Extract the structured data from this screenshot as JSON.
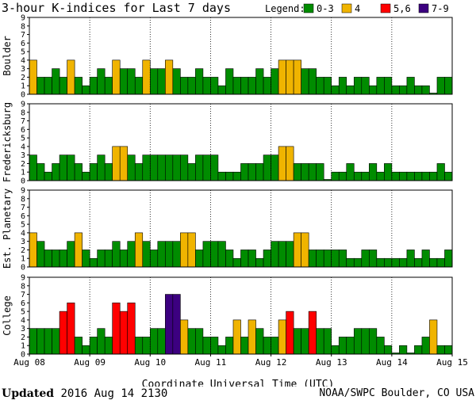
{
  "chart_data": {
    "type": "bar",
    "title": "3-hour K-indices for Last 7 days",
    "legend": {
      "label": "Legend:",
      "placement": "top-right",
      "items": [
        {
          "label": "0-3",
          "color": "#008c00"
        },
        {
          "label": "4",
          "color": "#f0b400"
        },
        {
          "label": "5,6",
          "color": "#ff0000"
        },
        {
          "label": "7-9",
          "color": "#3c0080"
        }
      ]
    },
    "ylim": [
      0,
      9
    ],
    "yticks": [
      0,
      1,
      2,
      3,
      4,
      5,
      6,
      7,
      8,
      9
    ],
    "xlabel": "Coordinate Universal Time (UTC)",
    "x_tick_labels": [
      "Aug 08",
      "Aug 09",
      "Aug 10",
      "Aug 11",
      "Aug 12",
      "Aug 13",
      "Aug 14",
      "Aug 15"
    ],
    "series": [
      {
        "name": "Boulder",
        "values": [
          4,
          2,
          2,
          3,
          2,
          4,
          2,
          1,
          2,
          3,
          2,
          4,
          3,
          3,
          2,
          4,
          3,
          3,
          4,
          3,
          2,
          2,
          3,
          2,
          2,
          1,
          3,
          2,
          2,
          2,
          3,
          2,
          3,
          4,
          4,
          4,
          3,
          3,
          2,
          2,
          1,
          2,
          1,
          2,
          2,
          1,
          2,
          2,
          1,
          1,
          2,
          1,
          1,
          0,
          2,
          2,
          1,
          0
        ]
      },
      {
        "name": "Fredericksburg",
        "values": [
          3,
          2,
          1,
          2,
          3,
          3,
          2,
          1,
          2,
          3,
          2,
          4,
          4,
          3,
          2,
          3,
          3,
          3,
          3,
          3,
          3,
          2,
          3,
          3,
          3,
          1,
          1,
          1,
          2,
          2,
          2,
          3,
          3,
          4,
          4,
          2,
          2,
          2,
          2,
          0,
          1,
          1,
          2,
          1,
          1,
          2,
          1,
          2,
          1,
          1,
          1,
          1,
          1,
          1,
          2,
          1,
          2,
          0
        ]
      },
      {
        "name": "Est. Planetary",
        "values": [
          4,
          3,
          2,
          2,
          2,
          3,
          4,
          2,
          1,
          2,
          2,
          3,
          2,
          3,
          4,
          3,
          2,
          3,
          3,
          3,
          4,
          4,
          2,
          3,
          3,
          3,
          2,
          1,
          2,
          2,
          1,
          2,
          3,
          3,
          3,
          4,
          4,
          2,
          2,
          2,
          2,
          2,
          1,
          1,
          2,
          2,
          1,
          1,
          1,
          1,
          2,
          1,
          2,
          1,
          1,
          2,
          0,
          1
        ]
      },
      {
        "name": "College",
        "values": [
          3,
          3,
          3,
          3,
          5,
          6,
          2,
          1,
          2,
          3,
          2,
          6,
          5,
          6,
          2,
          2,
          3,
          3,
          7,
          7,
          4,
          3,
          3,
          2,
          2,
          1,
          2,
          4,
          2,
          4,
          3,
          2,
          2,
          4,
          5,
          3,
          3,
          5,
          3,
          3,
          1,
          2,
          2,
          3,
          3,
          3,
          2,
          1,
          0,
          1,
          0,
          1,
          2,
          4,
          1,
          1,
          0,
          0
        ]
      }
    ]
  },
  "footer": {
    "updated_label": "Updated",
    "updated_value": "2016 Aug 14 2130",
    "credit": "NOAA/SWPC Boulder, CO USA"
  }
}
